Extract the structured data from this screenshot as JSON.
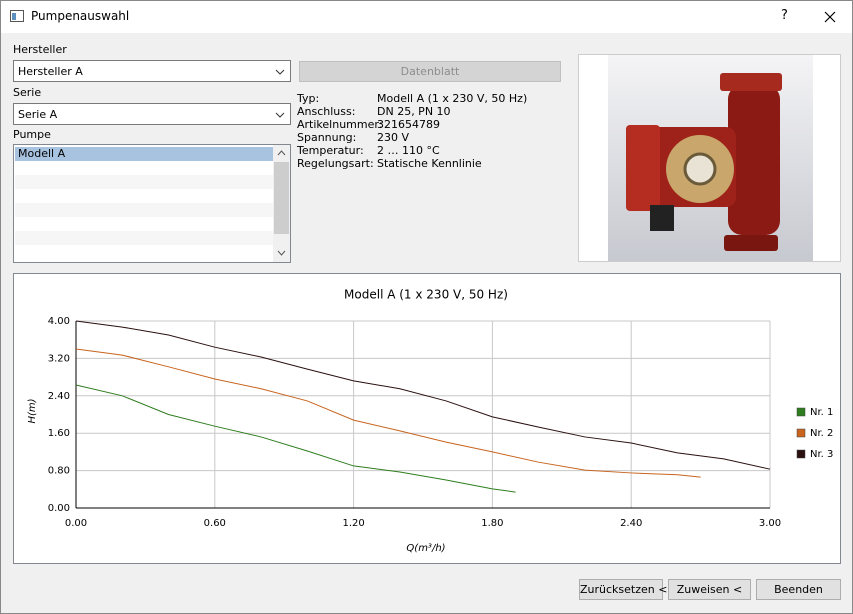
{
  "window": {
    "title": "Pumpenauswahl",
    "help": "?"
  },
  "form": {
    "manufacturer_label": "Hersteller",
    "manufacturer": "Hersteller A",
    "series_label": "Serie",
    "series": "Serie A",
    "pump_label": "Pumpe",
    "pumps": [
      "Modell A"
    ],
    "datasheet_button": "Datenblatt"
  },
  "details": [
    {
      "key": "Typ:",
      "value": "Modell A (1 x 230 V, 50 Hz)"
    },
    {
      "key": "Anschluss:",
      "value": "DN 25, PN 10"
    },
    {
      "key": "Artikelnummer:",
      "value": "321654789"
    },
    {
      "key": "Spannung:",
      "value": "230 V"
    },
    {
      "key": "Temperatur:",
      "value": "2 … 110 °C"
    },
    {
      "key": "Regelungsart:",
      "value": "Statische Kennlinie"
    }
  ],
  "chart_data": {
    "type": "line",
    "title": "Modell A (1 x 230 V, 50 Hz)",
    "xlabel": "Q(m³/h)",
    "ylabel": "H(m)",
    "xlim": [
      0,
      3
    ],
    "ylim": [
      0,
      4
    ],
    "xticks": [
      {
        "value": 0,
        "label": "0.00"
      },
      {
        "value": 0.6,
        "label": "0.60"
      },
      {
        "value": 1.2,
        "label": "1.20"
      },
      {
        "value": 1.8,
        "label": "1.80"
      },
      {
        "value": 2.4,
        "label": "2.40"
      },
      {
        "value": 3,
        "label": "3.00"
      }
    ],
    "yticks": [
      {
        "value": 0,
        "label": "0.00"
      },
      {
        "value": 0.8,
        "label": "0.80"
      },
      {
        "value": 1.6,
        "label": "1.60"
      },
      {
        "value": 2.4,
        "label": "2.40"
      },
      {
        "value": 3.2,
        "label": "3.20"
      },
      {
        "value": 4,
        "label": "4.00"
      }
    ],
    "grid": true,
    "legend": "right",
    "series": [
      {
        "name": "Nr. 1",
        "color": "#2e7d1e",
        "x": [
          0,
          0.2,
          0.4,
          0.6,
          0.8,
          1.0,
          1.2,
          1.4,
          1.6,
          1.8,
          1.9
        ],
        "values": [
          2.63,
          2.4,
          2.0,
          1.75,
          1.52,
          1.22,
          0.9,
          0.77,
          0.6,
          0.41,
          0.34
        ]
      },
      {
        "name": "Nr. 2",
        "color": "#c8641e",
        "x": [
          0,
          0.2,
          0.4,
          0.6,
          0.8,
          1.0,
          1.2,
          1.4,
          1.6,
          1.8,
          2.0,
          2.2,
          2.4,
          2.6,
          2.7
        ],
        "values": [
          3.4,
          3.27,
          3.02,
          2.76,
          2.55,
          2.29,
          1.88,
          1.65,
          1.41,
          1.2,
          0.98,
          0.81,
          0.75,
          0.71,
          0.66
        ]
      },
      {
        "name": "Nr. 3",
        "color": "#2a1010",
        "x": [
          0,
          0.2,
          0.4,
          0.6,
          0.8,
          1.0,
          1.2,
          1.4,
          1.6,
          1.8,
          2.0,
          2.2,
          2.4,
          2.6,
          2.8,
          3.0
        ],
        "values": [
          4.0,
          3.87,
          3.7,
          3.44,
          3.23,
          2.97,
          2.72,
          2.55,
          2.29,
          1.95,
          1.73,
          1.52,
          1.39,
          1.18,
          1.05,
          0.83
        ]
      }
    ]
  },
  "buttons": [
    "Zurücksetzen <",
    "Zuweisen <",
    "Beenden"
  ]
}
